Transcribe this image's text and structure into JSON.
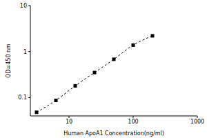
{
  "chart_data": {
    "type": "line",
    "x_label": "Human ApoA1 Concentration(ng/ml)",
    "y_label": "OD=450 nm",
    "x": [
      3.125,
      6.25,
      12.5,
      25,
      50,
      100,
      200
    ],
    "values": [
      0.048,
      0.087,
      0.18,
      0.35,
      0.68,
      1.38,
      2.2
    ],
    "color": "#000000",
    "marker": "square",
    "line_style": "dashed",
    "log": true,
    "xlim": [
      2.5,
      1000
    ],
    "xticks": [
      10,
      100,
      1000
    ],
    "ylim": [
      0.04,
      10
    ],
    "yticks": [
      0.1,
      1,
      10
    ],
    "grid": false
  }
}
